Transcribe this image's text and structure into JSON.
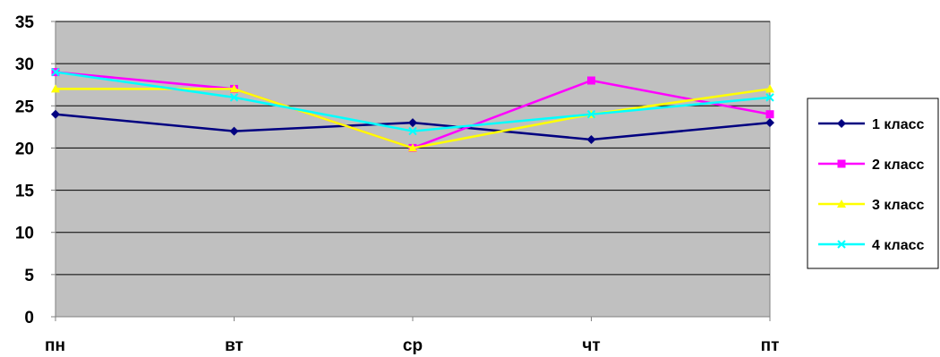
{
  "chart_data": {
    "type": "line",
    "categories": [
      "пн",
      "вт",
      "ср",
      "чт",
      "пт"
    ],
    "ylim": [
      0,
      35
    ],
    "y_ticks": [
      0,
      5,
      10,
      15,
      20,
      25,
      30,
      35
    ],
    "grid": true,
    "plot_background": "#c0c0c0",
    "legend_position": "right",
    "series": [
      {
        "name": "1 класс",
        "values": [
          24,
          22,
          23,
          21,
          23
        ],
        "color": "#000080",
        "marker": "diamond"
      },
      {
        "name": "2 класс",
        "values": [
          29,
          27,
          20,
          28,
          24
        ],
        "color": "#ff00ff",
        "marker": "square"
      },
      {
        "name": "3 класс",
        "values": [
          27,
          27,
          20,
          24,
          27
        ],
        "color": "#ffff00",
        "marker": "triangle"
      },
      {
        "name": "4 класс",
        "values": [
          29,
          26,
          22,
          24,
          26
        ],
        "color": "#00ffff",
        "marker": "x"
      }
    ]
  }
}
